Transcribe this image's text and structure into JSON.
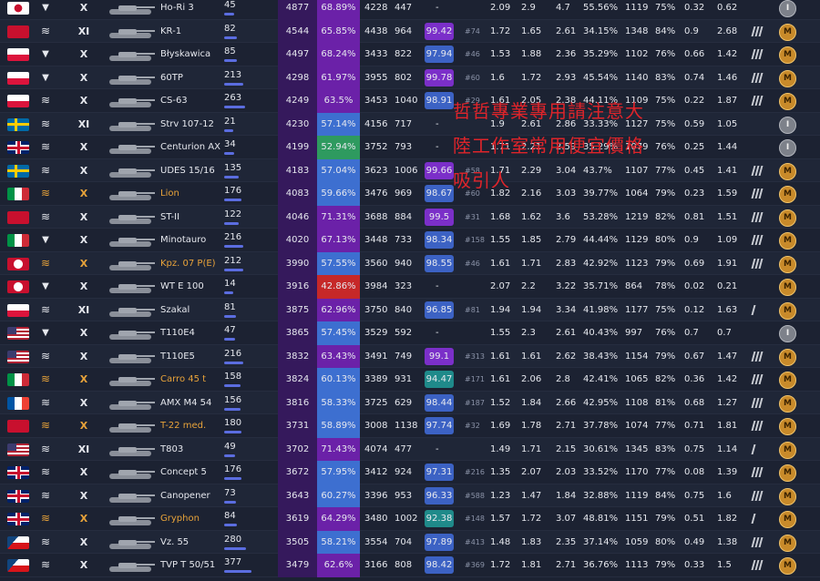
{
  "rating_color": "#35195c",
  "watermark": [
    "哲哲專業專用請注意大",
    "陸工作室常用便宜價格",
    "吸引人"
  ],
  "rows": [
    {
      "n": "jp",
      "cls": "td",
      "prem": false,
      "tier": "X",
      "name": "Ho-Ri 3",
      "battles": 45,
      "rating": "4877",
      "wr": "68.89%",
      "wrc": "#6b21a8",
      "dmg": "4228",
      "xp": "447",
      "pct": "-",
      "pctc": null,
      "rank": null,
      "stats": [
        "2.09",
        "2.9",
        "4.7",
        "55.56%",
        "1119",
        "75%",
        "0.32",
        "0.62"
      ],
      "marks": 0,
      "mastery": "I"
    },
    {
      "n": "su",
      "cls": "tank",
      "prem": false,
      "tier": "XI",
      "name": "KR-1",
      "battles": 82,
      "rating": "4544",
      "wr": "65.85%",
      "wrc": "#6b21a8",
      "dmg": "4438",
      "xp": "964",
      "pct": "99.42",
      "pctc": "#7b2fc9",
      "rank": "#74",
      "stats": [
        "1.72",
        "1.65",
        "2.61",
        "34.15%",
        "1348",
        "84%",
        "0.9",
        "2.68"
      ],
      "marks": 3,
      "mastery": "M"
    },
    {
      "n": "pl",
      "cls": "td",
      "prem": false,
      "tier": "X",
      "name": "Błyskawica",
      "battles": 85,
      "rating": "4497",
      "wr": "68.24%",
      "wrc": "#6b21a8",
      "dmg": "3433",
      "xp": "822",
      "pct": "97.94",
      "pctc": "#3c62c4",
      "rank": "#46",
      "stats": [
        "1.53",
        "1.88",
        "2.36",
        "35.29%",
        "1102",
        "76%",
        "0.66",
        "1.42"
      ],
      "marks": 3,
      "mastery": "M"
    },
    {
      "n": "pl",
      "cls": "td",
      "prem": false,
      "tier": "X",
      "name": "60TP",
      "battles": 213,
      "rating": "4298",
      "wr": "61.97%",
      "wrc": "#6b21a8",
      "dmg": "3955",
      "xp": "802",
      "pct": "99.78",
      "pctc": "#7b2fc9",
      "rank": "#60",
      "stats": [
        "1.6",
        "1.72",
        "2.93",
        "45.54%",
        "1140",
        "83%",
        "0.74",
        "1.46"
      ],
      "marks": 3,
      "mastery": "M"
    },
    {
      "n": "pl",
      "cls": "tank",
      "prem": false,
      "tier": "X",
      "name": "CS-63",
      "battles": 263,
      "rating": "4249",
      "wr": "63.5%",
      "wrc": "#6b21a8",
      "dmg": "3453",
      "xp": "1040",
      "pct": "98.91",
      "pctc": "#3c62c4",
      "rank": "#29",
      "stats": [
        "1.61",
        "2.05",
        "2.38",
        "44.11%",
        "1109",
        "75%",
        "0.22",
        "1.87"
      ],
      "marks": 3,
      "mastery": "M"
    },
    {
      "n": "se",
      "cls": "tank",
      "prem": false,
      "tier": "XI",
      "name": "Strv 107-12",
      "battles": 21,
      "rating": "4230",
      "wr": "57.14%",
      "wrc": "#3d6fd0",
      "dmg": "4156",
      "xp": "717",
      "pct": "-",
      "pctc": null,
      "rank": null,
      "stats": [
        "1.9",
        "2.61",
        "2.86",
        "33.33%",
        "1127",
        "75%",
        "0.59",
        "1.05"
      ],
      "marks": 0,
      "mastery": "I"
    },
    {
      "n": "gb",
      "cls": "tank",
      "prem": false,
      "tier": "X",
      "name": "Centurion AX",
      "battles": 34,
      "rating": "4199",
      "wr": "52.94%",
      "wrc": "#2e9a5f",
      "dmg": "3752",
      "xp": "793",
      "pct": "-",
      "pctc": null,
      "rank": null,
      "stats": [
        "1.71",
        "2.21",
        "2.59",
        "35.29%",
        "1079",
        "76%",
        "0.25",
        "1.44"
      ],
      "marks": 0,
      "mastery": "I"
    },
    {
      "n": "se",
      "cls": "tank",
      "prem": false,
      "tier": "X",
      "name": "UDES 15/16",
      "battles": 135,
      "rating": "4183",
      "wr": "57.04%",
      "wrc": "#3d6fd0",
      "dmg": "3623",
      "xp": "1006",
      "pct": "99.66",
      "pctc": "#7b2fc9",
      "rank": "#58",
      "stats": [
        "1.71",
        "2.29",
        "3.04",
        "43.7%",
        "1107",
        "77%",
        "0.45",
        "1.41"
      ],
      "marks": 3,
      "mastery": "M"
    },
    {
      "n": "it",
      "cls": "tank",
      "prem": true,
      "tier": "X",
      "name": "Lion",
      "battles": 176,
      "rating": "4083",
      "wr": "59.66%",
      "wrc": "#3d6fd0",
      "dmg": "3476",
      "xp": "969",
      "pct": "98.67",
      "pctc": "#3c62c4",
      "rank": "#60",
      "stats": [
        "1.82",
        "2.16",
        "3.03",
        "39.77%",
        "1064",
        "79%",
        "0.23",
        "1.59"
      ],
      "marks": 3,
      "mastery": "M"
    },
    {
      "n": "su",
      "cls": "tank",
      "prem": false,
      "tier": "X",
      "name": "ST-II",
      "battles": 122,
      "rating": "4046",
      "wr": "71.31%",
      "wrc": "#6b21a8",
      "dmg": "3688",
      "xp": "884",
      "pct": "99.5",
      "pctc": "#7b2fc9",
      "rank": "#31",
      "stats": [
        "1.68",
        "1.62",
        "3.6",
        "53.28%",
        "1219",
        "82%",
        "0.81",
        "1.51"
      ],
      "marks": 3,
      "mastery": "M"
    },
    {
      "n": "it",
      "cls": "td",
      "prem": false,
      "tier": "X",
      "name": "Minotauro",
      "battles": 216,
      "rating": "4020",
      "wr": "67.13%",
      "wrc": "#6b21a8",
      "dmg": "3448",
      "xp": "733",
      "pct": "98.34",
      "pctc": "#3c62c4",
      "rank": "#158",
      "stats": [
        "1.55",
        "1.85",
        "2.79",
        "44.44%",
        "1129",
        "80%",
        "0.9",
        "1.09"
      ],
      "marks": 3,
      "mastery": "M"
    },
    {
      "n": "de",
      "cls": "tank",
      "prem": true,
      "tier": "X",
      "name": "Kpz. 07 P(E)",
      "battles": 212,
      "rating": "3990",
      "wr": "57.55%",
      "wrc": "#3d6fd0",
      "dmg": "3560",
      "xp": "940",
      "pct": "98.55",
      "pctc": "#3c62c4",
      "rank": "#46",
      "stats": [
        "1.61",
        "1.71",
        "2.83",
        "42.92%",
        "1123",
        "79%",
        "0.69",
        "1.91"
      ],
      "marks": 3,
      "mastery": "M"
    },
    {
      "n": "de",
      "cls": "td",
      "prem": false,
      "tier": "X",
      "name": "WT E 100",
      "battles": 14,
      "rating": "3916",
      "wr": "42.86%",
      "wrc": "#c62828",
      "dmg": "3984",
      "xp": "323",
      "pct": "-",
      "pctc": null,
      "rank": null,
      "stats": [
        "2.07",
        "2.2",
        "3.22",
        "35.71%",
        "864",
        "78%",
        "0.02",
        "0.21"
      ],
      "marks": 0,
      "mastery": "M"
    },
    {
      "n": "pl",
      "cls": "tank",
      "prem": false,
      "tier": "XI",
      "name": "Szakal",
      "battles": 81,
      "rating": "3875",
      "wr": "62.96%",
      "wrc": "#6b21a8",
      "dmg": "3750",
      "xp": "840",
      "pct": "96.85",
      "pctc": "#3c62c4",
      "rank": "#81",
      "stats": [
        "1.94",
        "1.94",
        "3.34",
        "41.98%",
        "1177",
        "75%",
        "0.12",
        "1.63"
      ],
      "marks": 1,
      "mastery": "M"
    },
    {
      "n": "us",
      "cls": "td",
      "prem": false,
      "tier": "X",
      "name": "T110E4",
      "battles": 47,
      "rating": "3865",
      "wr": "57.45%",
      "wrc": "#3d6fd0",
      "dmg": "3529",
      "xp": "592",
      "pct": "-",
      "pctc": null,
      "rank": null,
      "stats": [
        "1.55",
        "2.3",
        "2.61",
        "40.43%",
        "997",
        "76%",
        "0.7",
        "0.7"
      ],
      "marks": 0,
      "mastery": "I"
    },
    {
      "n": "us",
      "cls": "tank",
      "prem": false,
      "tier": "X",
      "name": "T110E5",
      "battles": 216,
      "rating": "3832",
      "wr": "63.43%",
      "wrc": "#6b21a8",
      "dmg": "3491",
      "xp": "749",
      "pct": "99.1",
      "pctc": "#7b2fc9",
      "rank": "#313",
      "stats": [
        "1.61",
        "1.61",
        "2.62",
        "38.43%",
        "1154",
        "79%",
        "0.67",
        "1.47"
      ],
      "marks": 3,
      "mastery": "M"
    },
    {
      "n": "it",
      "cls": "tank",
      "prem": true,
      "tier": "X",
      "name": "Carro 45 t",
      "battles": 158,
      "rating": "3824",
      "wr": "60.13%",
      "wrc": "#3d6fd0",
      "dmg": "3389",
      "xp": "931",
      "pct": "94.47",
      "pctc": "#1f8a8a",
      "rank": "#171",
      "stats": [
        "1.61",
        "2.06",
        "2.8",
        "42.41%",
        "1065",
        "82%",
        "0.36",
        "1.42"
      ],
      "marks": 3,
      "mastery": "M"
    },
    {
      "n": "fr",
      "cls": "tank",
      "prem": false,
      "tier": "X",
      "name": "AMX M4 54",
      "battles": 156,
      "rating": "3816",
      "wr": "58.33%",
      "wrc": "#3d6fd0",
      "dmg": "3725",
      "xp": "629",
      "pct": "98.44",
      "pctc": "#3c62c4",
      "rank": "#187",
      "stats": [
        "1.52",
        "1.84",
        "2.66",
        "42.95%",
        "1108",
        "81%",
        "0.68",
        "1.27"
      ],
      "marks": 3,
      "mastery": "M"
    },
    {
      "n": "su",
      "cls": "tank",
      "prem": true,
      "tier": "X",
      "name": "T-22 med.",
      "battles": 180,
      "rating": "3731",
      "wr": "58.89%",
      "wrc": "#3d6fd0",
      "dmg": "3008",
      "xp": "1138",
      "pct": "97.74",
      "pctc": "#3c62c4",
      "rank": "#32",
      "stats": [
        "1.69",
        "1.78",
        "2.71",
        "37.78%",
        "1074",
        "77%",
        "0.71",
        "1.81"
      ],
      "marks": 3,
      "mastery": "M"
    },
    {
      "n": "us",
      "cls": "tank",
      "prem": false,
      "tier": "XI",
      "name": "T803",
      "battles": 49,
      "rating": "3702",
      "wr": "71.43%",
      "wrc": "#6b21a8",
      "dmg": "4074",
      "xp": "477",
      "pct": "-",
      "pctc": null,
      "rank": null,
      "stats": [
        "1.49",
        "1.71",
        "2.15",
        "30.61%",
        "1345",
        "83%",
        "0.75",
        "1.14"
      ],
      "marks": 1,
      "mastery": "M"
    },
    {
      "n": "gb",
      "cls": "tank",
      "prem": false,
      "tier": "X",
      "name": "Concept 5",
      "battles": 176,
      "rating": "3672",
      "wr": "57.95%",
      "wrc": "#3d6fd0",
      "dmg": "3412",
      "xp": "924",
      "pct": "97.31",
      "pctc": "#3c62c4",
      "rank": "#216",
      "stats": [
        "1.35",
        "2.07",
        "2.03",
        "33.52%",
        "1170",
        "77%",
        "0.08",
        "1.39"
      ],
      "marks": 3,
      "mastery": "M"
    },
    {
      "n": "gb",
      "cls": "tank",
      "prem": false,
      "tier": "X",
      "name": "Canopener",
      "battles": 73,
      "rating": "3643",
      "wr": "60.27%",
      "wrc": "#3d6fd0",
      "dmg": "3396",
      "xp": "953",
      "pct": "96.33",
      "pctc": "#3c62c4",
      "rank": "#588",
      "stats": [
        "1.23",
        "1.47",
        "1.84",
        "32.88%",
        "1119",
        "84%",
        "0.75",
        "1.6"
      ],
      "marks": 3,
      "mastery": "M"
    },
    {
      "n": "gb",
      "cls": "tank",
      "prem": true,
      "tier": "X",
      "name": "Gryphon",
      "battles": 84,
      "rating": "3619",
      "wr": "64.29%",
      "wrc": "#6b21a8",
      "dmg": "3480",
      "xp": "1002",
      "pct": "92.38",
      "pctc": "#1f8a8a",
      "rank": "#148",
      "stats": [
        "1.57",
        "1.72",
        "3.07",
        "48.81%",
        "1151",
        "79%",
        "0.51",
        "1.82"
      ],
      "marks": 1,
      "mastery": "M"
    },
    {
      "n": "cz",
      "cls": "tank",
      "prem": false,
      "tier": "X",
      "name": "Vz. 55",
      "battles": 280,
      "rating": "3505",
      "wr": "58.21%",
      "wrc": "#3d6fd0",
      "dmg": "3554",
      "xp": "704",
      "pct": "97.89",
      "pctc": "#3c62c4",
      "rank": "#413",
      "stats": [
        "1.48",
        "1.83",
        "2.35",
        "37.14%",
        "1059",
        "80%",
        "0.49",
        "1.38"
      ],
      "marks": 3,
      "mastery": "M"
    },
    {
      "n": "cz",
      "cls": "tank",
      "prem": false,
      "tier": "X",
      "name": "TVP T 50/51",
      "battles": 377,
      "rating": "3479",
      "wr": "62.6%",
      "wrc": "#6b21a8",
      "dmg": "3166",
      "xp": "808",
      "pct": "98.42",
      "pctc": "#3c62c4",
      "rank": "#369",
      "stats": [
        "1.72",
        "1.81",
        "2.71",
        "36.76%",
        "1113",
        "79%",
        "0.33",
        "1.5"
      ],
      "marks": 3,
      "mastery": "M"
    }
  ]
}
